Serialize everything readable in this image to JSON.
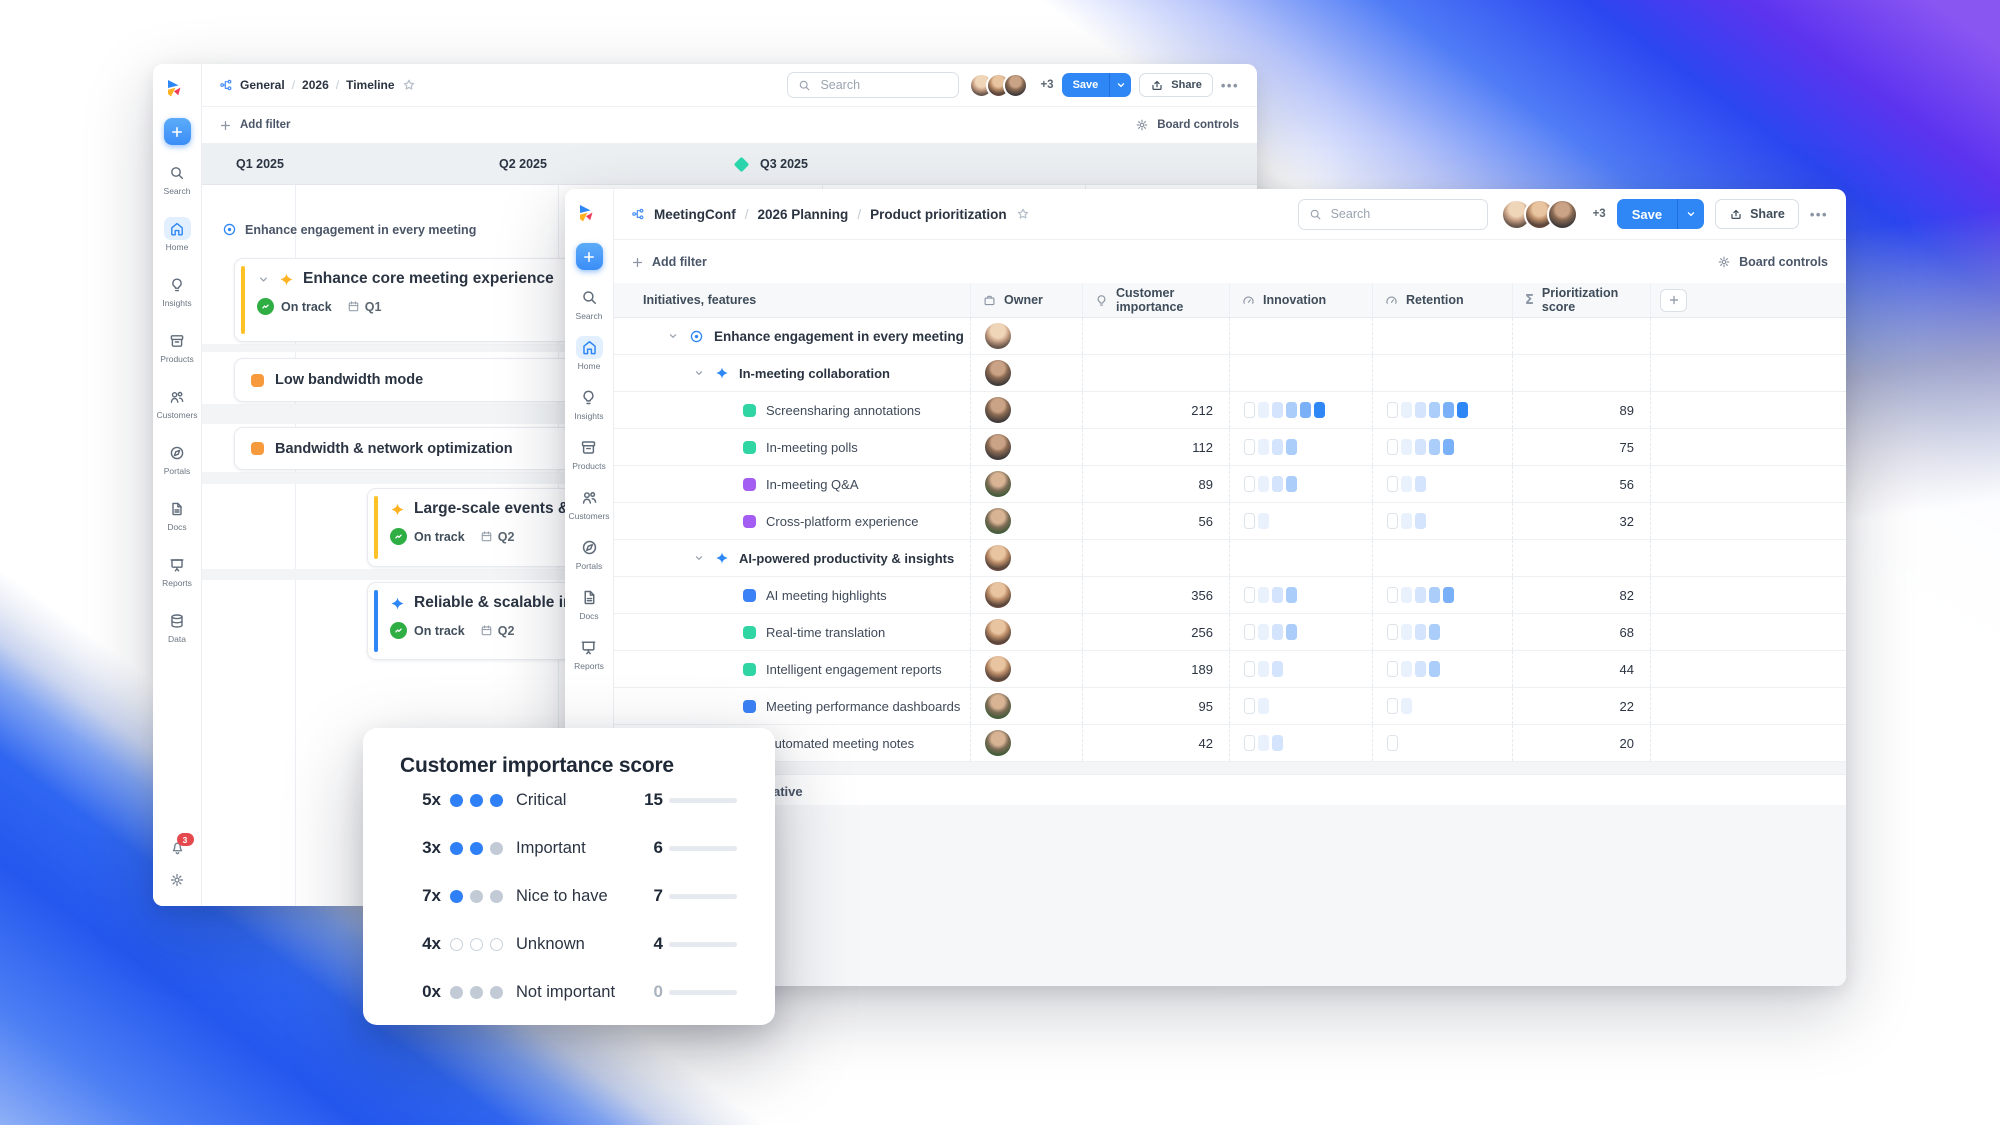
{
  "palette": {
    "brand_blue": "#2f87f6",
    "accent_green": "#2fae44",
    "accent_orange": "#f79a3e",
    "accent_teal": "#2fd6a3",
    "accent_purple": "#a35df2",
    "accent_yellow": "#ffb224",
    "badge_red": "#e5484d",
    "marker_teal": "#2bd9b0"
  },
  "back_window": {
    "breadcrumb": [
      "General",
      "2026",
      "Timeline"
    ],
    "toolbar": {
      "search_placeholder": "Search",
      "avatars_overflow": "+3",
      "save_label": "Save",
      "share_label": "Share",
      "more_label": "..."
    },
    "filter_bar": {
      "add_filter_label": "Add filter",
      "board_controls_label": "Board controls"
    },
    "sidebar": {
      "items": [
        {
          "label": "Search",
          "icon": "search"
        },
        {
          "label": "Home",
          "icon": "home",
          "active": true
        },
        {
          "label": "Insights",
          "icon": "insights"
        },
        {
          "label": "Products",
          "icon": "products"
        },
        {
          "label": "Customers",
          "icon": "customers"
        },
        {
          "label": "Portals",
          "icon": "portals"
        },
        {
          "label": "Docs",
          "icon": "docs"
        },
        {
          "label": "Reports",
          "icon": "reports"
        },
        {
          "label": "Data",
          "icon": "data"
        }
      ],
      "notification_badge": "3"
    },
    "timeline": {
      "quarters": [
        {
          "label": "Q1 2025"
        },
        {
          "label": "Q2 2025"
        },
        {
          "label": "Q3 2025",
          "marker": true
        }
      ],
      "group_label": "Enhance engagement in every meeting",
      "cards": [
        {
          "title": "Enhance core meeting experience",
          "accent": "yellow",
          "icon": "sparkle",
          "chevron": true,
          "status": "On track",
          "quarter": "Q1"
        },
        {
          "title": "Low bandwidth mode",
          "accent": "orange",
          "icon": "square"
        },
        {
          "title": "Bandwidth & network optimization",
          "accent": "orange",
          "icon": "square"
        },
        {
          "title": "Large-scale events & we",
          "accent": "yellow",
          "icon": "sparkle",
          "status": "On track",
          "quarter": "Q2"
        },
        {
          "title": "Reliable & scalable infra",
          "accent": "blue",
          "icon": "sparkle",
          "status": "On track",
          "quarter": "Q2"
        }
      ]
    }
  },
  "front_window": {
    "breadcrumb": [
      "MeetingConf",
      "2026 Planning",
      "Product prioritization"
    ],
    "toolbar": {
      "search_placeholder": "Search",
      "avatars_overflow": "+3",
      "save_label": "Save",
      "share_label": "Share",
      "more_label": "..."
    },
    "filter_bar": {
      "add_filter_label": "Add filter",
      "board_controls_label": "Board controls"
    },
    "sidebar": {
      "items": [
        {
          "label": "Search",
          "icon": "search"
        },
        {
          "label": "Home",
          "icon": "home",
          "active": true
        },
        {
          "label": "Insights",
          "icon": "insights"
        },
        {
          "label": "Products",
          "icon": "products"
        },
        {
          "label": "Customers",
          "icon": "customers"
        },
        {
          "label": "Portals",
          "icon": "portals"
        },
        {
          "label": "Docs",
          "icon": "docs"
        },
        {
          "label": "Reports",
          "icon": "reports"
        }
      ]
    },
    "table": {
      "columns": [
        {
          "label": "Initiatives, features"
        },
        {
          "label": "Owner",
          "icon": "owner"
        },
        {
          "label": "Customer importance",
          "icon": "bulb"
        },
        {
          "label": "Innovation",
          "icon": "gauge"
        },
        {
          "label": "Retention",
          "icon": "gauge"
        },
        {
          "label": "Prioritization score",
          "icon": "sigma"
        }
      ],
      "rows": [
        {
          "label": "Enhance engagement in every meeting",
          "level": 1,
          "icon": "target",
          "chevron": true,
          "avatar": "a1"
        },
        {
          "label": "In-meeting collaboration",
          "level": 2,
          "icon": "sparkle",
          "chevron": true,
          "avatar": "a2"
        },
        {
          "label": "Screensharing annotations",
          "level": 3,
          "color": "teal",
          "avatar": "a2",
          "importance": "212",
          "innovation": 6,
          "retention": 6,
          "score": "89"
        },
        {
          "label": "In-meeting polls",
          "level": 3,
          "color": "teal",
          "avatar": "a2",
          "importance": "112",
          "innovation": 4,
          "retention": 5,
          "score": "75"
        },
        {
          "label": "In-meeting Q&A",
          "level": 3,
          "color": "purple",
          "avatar": "a3",
          "importance": "89",
          "innovation": 4,
          "retention": 3,
          "score": "56"
        },
        {
          "label": "Cross-platform experience",
          "level": 3,
          "color": "purple",
          "avatar": "a3",
          "importance": "56",
          "innovation": 2,
          "retention": 3,
          "score": "32"
        },
        {
          "label": "AI-powered productivity & insights",
          "level": 2,
          "icon": "sparkle",
          "chevron": true,
          "avatar": "a4"
        },
        {
          "label": "AI meeting highlights",
          "level": 3,
          "color": "blue",
          "avatar": "a4",
          "importance": "356",
          "innovation": 4,
          "retention": 5,
          "score": "82"
        },
        {
          "label": "Real-time translation",
          "level": 3,
          "color": "teal",
          "avatar": "a4",
          "importance": "256",
          "innovation": 4,
          "retention": 4,
          "score": "68"
        },
        {
          "label": "Intelligent engagement reports",
          "level": 3,
          "color": "teal",
          "avatar": "a4",
          "importance": "189",
          "innovation": 3,
          "retention": 4,
          "score": "44"
        },
        {
          "label": "Meeting performance dashboards",
          "level": 3,
          "color": "blue",
          "avatar": "a3",
          "importance": "95",
          "innovation": 2,
          "retention": 2,
          "score": "22"
        },
        {
          "label": "Automated meeting notes",
          "level": 3,
          "color": "teal",
          "avatar": "a3",
          "importance": "42",
          "innovation": 3,
          "retention": 1,
          "score": "20"
        }
      ],
      "footer_label": "Add initiative"
    }
  },
  "popup": {
    "title": "Customer importance score",
    "rows": [
      {
        "multiplier": "5x",
        "dots": [
          "blue",
          "blue",
          "blue"
        ],
        "label": "Critical",
        "value": "15",
        "bar_fill": 0.93
      },
      {
        "multiplier": "3x",
        "dots": [
          "blue",
          "blue",
          "gray"
        ],
        "label": "Important",
        "value": "6",
        "bar_fill": 0.48
      },
      {
        "multiplier": "7x",
        "dots": [
          "blue",
          "gray",
          "gray"
        ],
        "label": "Nice to have",
        "value": "7",
        "bar_fill": 0.55
      },
      {
        "multiplier": "4x",
        "dots": [
          "outline",
          "outline",
          "outline"
        ],
        "label": "Unknown",
        "value": "4",
        "bar_fill": 0.33
      },
      {
        "multiplier": "0x",
        "dots": [
          "gray",
          "gray",
          "gray"
        ],
        "label": "Not important",
        "value": "0",
        "bar_fill": 0,
        "muted": true
      }
    ]
  }
}
